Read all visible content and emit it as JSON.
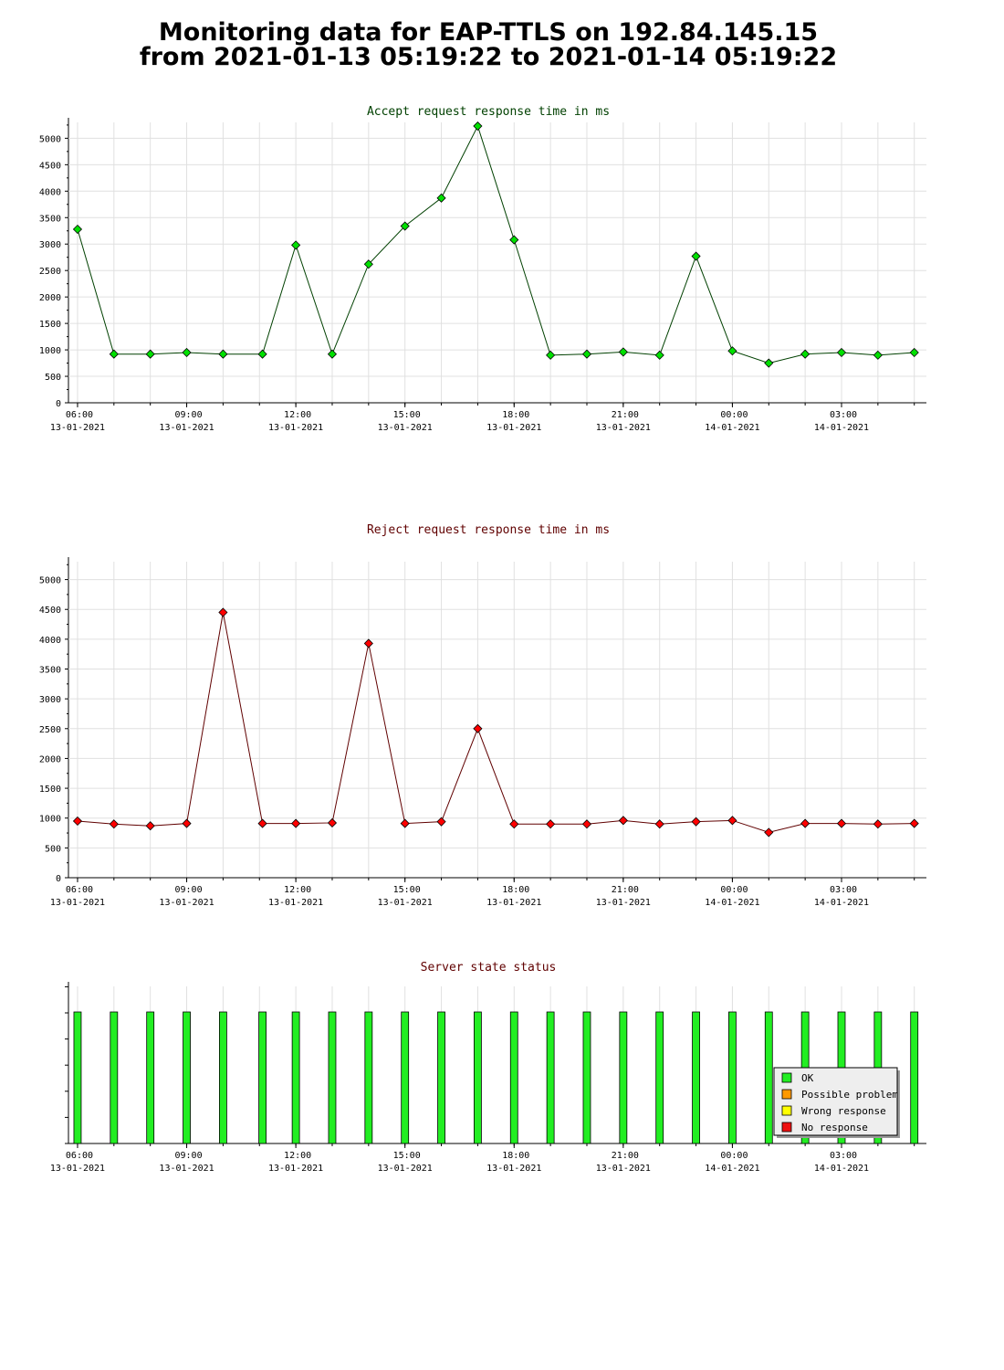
{
  "page": {
    "title_line1": "Monitoring data for EAP-TTLS on 192.84.145.15",
    "title_line2": "from 2021-01-13 05:19:22 to 2021-01-14 05:19:22"
  },
  "colors": {
    "accept_line": "#004000",
    "accept_marker": "#00e000",
    "reject_line": "#600000",
    "reject_marker": "#ff0000",
    "title_accept": "#004000",
    "title_reject": "#600000",
    "grid": "#e0e0e0",
    "status_ok": "#22ee22",
    "status_possible_problem": "#ff9900",
    "status_wrong_response": "#ffff00",
    "status_no_response": "#ee1111"
  },
  "chart_data": [
    {
      "type": "line",
      "title": "Accept request response time in ms",
      "x_tick_labels": [
        {
          "time": "06:00",
          "date": "13-01-2021"
        },
        {
          "time": "09:00",
          "date": "13-01-2021"
        },
        {
          "time": "12:00",
          "date": "13-01-2021"
        },
        {
          "time": "15:00",
          "date": "13-01-2021"
        },
        {
          "time": "18:00",
          "date": "13-01-2021"
        },
        {
          "time": "21:00",
          "date": "13-01-2021"
        },
        {
          "time": "00:00",
          "date": "14-01-2021"
        },
        {
          "time": "03:00",
          "date": "14-01-2021"
        }
      ],
      "y_ticks": [
        0,
        500,
        1000,
        1500,
        2000,
        2500,
        3000,
        3500,
        4000,
        4500,
        5000
      ],
      "ylim": [
        0,
        5300
      ],
      "xlim": [
        "2021-01-13 05:45",
        "2021-01-14 05:20"
      ],
      "grid": true,
      "series": [
        {
          "x": [
            "2021-01-13 06:00",
            "2021-01-13 07:00",
            "2021-01-13 08:00",
            "2021-01-13 09:00",
            "2021-01-13 10:00",
            "2021-01-13 11:05",
            "2021-01-13 12:00",
            "2021-01-13 13:00",
            "2021-01-13 14:00",
            "2021-01-13 15:00",
            "2021-01-13 16:00",
            "2021-01-13 17:00",
            "2021-01-13 18:00",
            "2021-01-13 19:00",
            "2021-01-13 20:00",
            "2021-01-13 21:00",
            "2021-01-13 22:00",
            "2021-01-13 23:00",
            "2021-01-14 00:00",
            "2021-01-14 01:00",
            "2021-01-14 02:00",
            "2021-01-14 03:00",
            "2021-01-14 04:00",
            "2021-01-14 05:00"
          ],
          "y": [
            3280,
            920,
            920,
            950,
            920,
            920,
            2980,
            920,
            2620,
            3340,
            3870,
            5230,
            3080,
            900,
            920,
            960,
            900,
            2770,
            980,
            750,
            920,
            950,
            900,
            950
          ]
        }
      ]
    },
    {
      "type": "line",
      "title": "Reject request response time in ms",
      "x_tick_labels": [
        {
          "time": "06:00",
          "date": "13-01-2021"
        },
        {
          "time": "09:00",
          "date": "13-01-2021"
        },
        {
          "time": "12:00",
          "date": "13-01-2021"
        },
        {
          "time": "15:00",
          "date": "13-01-2021"
        },
        {
          "time": "18:00",
          "date": "13-01-2021"
        },
        {
          "time": "21:00",
          "date": "13-01-2021"
        },
        {
          "time": "00:00",
          "date": "14-01-2021"
        },
        {
          "time": "03:00",
          "date": "14-01-2021"
        }
      ],
      "y_ticks": [
        0,
        500,
        1000,
        1500,
        2000,
        2500,
        3000,
        3500,
        4000,
        4500,
        5000
      ],
      "ylim": [
        0,
        5300
      ],
      "xlim": [
        "2021-01-13 05:45",
        "2021-01-14 05:20"
      ],
      "grid": true,
      "series": [
        {
          "x": [
            "2021-01-13 06:00",
            "2021-01-13 07:00",
            "2021-01-13 08:00",
            "2021-01-13 09:00",
            "2021-01-13 10:00",
            "2021-01-13 11:05",
            "2021-01-13 12:00",
            "2021-01-13 13:00",
            "2021-01-13 14:00",
            "2021-01-13 15:00",
            "2021-01-13 16:00",
            "2021-01-13 17:00",
            "2021-01-13 18:00",
            "2021-01-13 19:00",
            "2021-01-13 20:00",
            "2021-01-13 21:00",
            "2021-01-13 22:00",
            "2021-01-13 23:00",
            "2021-01-14 00:00",
            "2021-01-14 01:00",
            "2021-01-14 02:00",
            "2021-01-14 03:00",
            "2021-01-14 04:00",
            "2021-01-14 05:00"
          ],
          "y": [
            950,
            900,
            870,
            910,
            4450,
            910,
            910,
            920,
            3930,
            910,
            940,
            2500,
            900,
            900,
            900,
            960,
            900,
            940,
            960,
            760,
            910,
            910,
            900,
            910
          ]
        }
      ]
    },
    {
      "type": "bar",
      "title": "Server state status",
      "x_tick_labels": [
        {
          "time": "06:00",
          "date": "13-01-2021"
        },
        {
          "time": "09:00",
          "date": "13-01-2021"
        },
        {
          "time": "12:00",
          "date": "13-01-2021"
        },
        {
          "time": "15:00",
          "date": "13-01-2021"
        },
        {
          "time": "18:00",
          "date": "13-01-2021"
        },
        {
          "time": "21:00",
          "date": "13-01-2021"
        },
        {
          "time": "00:00",
          "date": "14-01-2021"
        },
        {
          "time": "03:00",
          "date": "14-01-2021"
        }
      ],
      "xlim": [
        "2021-01-13 05:45",
        "2021-01-14 05:20"
      ],
      "legend_position": "bottom-right",
      "legend": [
        "OK",
        "Possible problem",
        "Wrong response",
        "No response"
      ],
      "x": [
        "2021-01-13 06:00",
        "2021-01-13 07:00",
        "2021-01-13 08:00",
        "2021-01-13 09:00",
        "2021-01-13 10:00",
        "2021-01-13 11:05",
        "2021-01-13 12:00",
        "2021-01-13 13:00",
        "2021-01-13 14:00",
        "2021-01-13 15:00",
        "2021-01-13 16:00",
        "2021-01-13 17:00",
        "2021-01-13 18:00",
        "2021-01-13 19:00",
        "2021-01-13 20:00",
        "2021-01-13 21:00",
        "2021-01-13 22:00",
        "2021-01-13 23:00",
        "2021-01-14 00:00",
        "2021-01-14 01:00",
        "2021-01-14 02:00",
        "2021-01-14 03:00",
        "2021-01-14 04:00",
        "2021-01-14 05:00"
      ],
      "status": [
        "OK",
        "OK",
        "OK",
        "OK",
        "OK",
        "OK",
        "OK",
        "OK",
        "OK",
        "OK",
        "OK",
        "OK",
        "OK",
        "OK",
        "OK",
        "OK",
        "OK",
        "OK",
        "OK",
        "OK",
        "OK",
        "OK",
        "OK",
        "OK"
      ]
    }
  ]
}
